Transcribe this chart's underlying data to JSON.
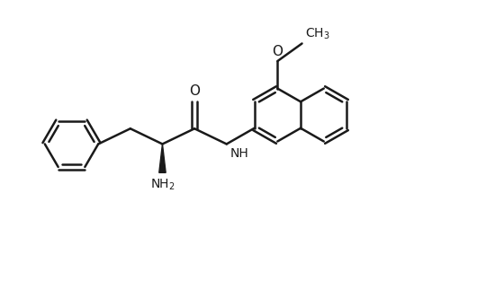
{
  "background_color": "#ffffff",
  "line_color": "#1a1a1a",
  "line_width": 1.8,
  "fig_width": 5.5,
  "fig_height": 3.13,
  "dpi": 100,
  "xlim": [
    0,
    11
  ],
  "ylim": [
    0,
    6.26
  ]
}
